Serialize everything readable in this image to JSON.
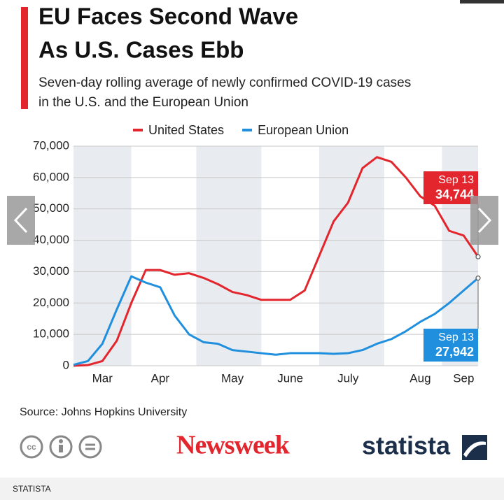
{
  "chart_data": {
    "type": "line",
    "title_lines": [
      "EU Faces Second Wave",
      "As U.S. Cases Ebb"
    ],
    "subtitle_lines": [
      "Seven-day rolling average of newly confirmed COVID-19 cases",
      "in the U.S. and the European Union"
    ],
    "categories": [
      null,
      null,
      "Mar",
      null,
      null,
      null,
      "Apr",
      null,
      null,
      null,
      null,
      "May",
      null,
      null,
      null,
      "June",
      null,
      null,
      null,
      "July",
      null,
      null,
      null,
      null,
      "Aug",
      null,
      null,
      "Sep",
      null
    ],
    "series": [
      {
        "name": "United States",
        "color": "#e3262d",
        "values": [
          0,
          200,
          1500,
          8000,
          20000,
          30500,
          30500,
          29000,
          29500,
          28000,
          26000,
          23500,
          22500,
          21000,
          21000,
          21000,
          24000,
          35000,
          46000,
          52000,
          63000,
          66500,
          65000,
          60000,
          54000,
          51000,
          43000,
          41500,
          34744
        ],
        "value_labels": [
          null,
          null,
          null,
          null,
          null,
          null,
          null,
          null,
          null,
          null,
          null,
          null,
          null,
          null,
          null,
          null,
          null,
          null,
          null,
          null,
          null,
          null,
          null,
          null,
          null,
          null,
          null,
          null,
          "34,744"
        ],
        "annotation": "Sep 13"
      },
      {
        "name": "European Union",
        "color": "#1f8fde",
        "values": [
          300,
          1500,
          7000,
          18000,
          28500,
          26500,
          25000,
          16000,
          10000,
          7500,
          7000,
          5000,
          4500,
          4000,
          3500,
          4000,
          4000,
          4000,
          3800,
          4000,
          5000,
          7000,
          8500,
          11000,
          14000,
          16500,
          20000,
          24000,
          27942
        ],
        "value_labels": [
          null,
          null,
          null,
          null,
          null,
          null,
          null,
          null,
          null,
          null,
          null,
          null,
          null,
          null,
          null,
          null,
          null,
          null,
          null,
          null,
          null,
          null,
          null,
          null,
          null,
          null,
          null,
          null,
          "27,942"
        ],
        "annotation": "Sep 13"
      }
    ],
    "ylim": [
      0,
      70000
    ],
    "yticks": [
      0,
      {
        "value": 10000,
        "label": "10,000"
      },
      {
        "value": 20000,
        "label": "20,000"
      },
      {
        "value": 30000,
        "label": "30,000"
      },
      {
        "value": 40000,
        "label": "40,000"
      },
      {
        "value": 50000,
        "label": "50,000"
      },
      {
        "value": 60000,
        "label": "60,000"
      },
      {
        "value": 70000,
        "label": "70,000"
      }
    ],
    "grid": true,
    "source": "Source: Johns Hopkins University"
  },
  "brands": [
    "Newsweek",
    "statista"
  ],
  "footer": "STATISTA"
}
